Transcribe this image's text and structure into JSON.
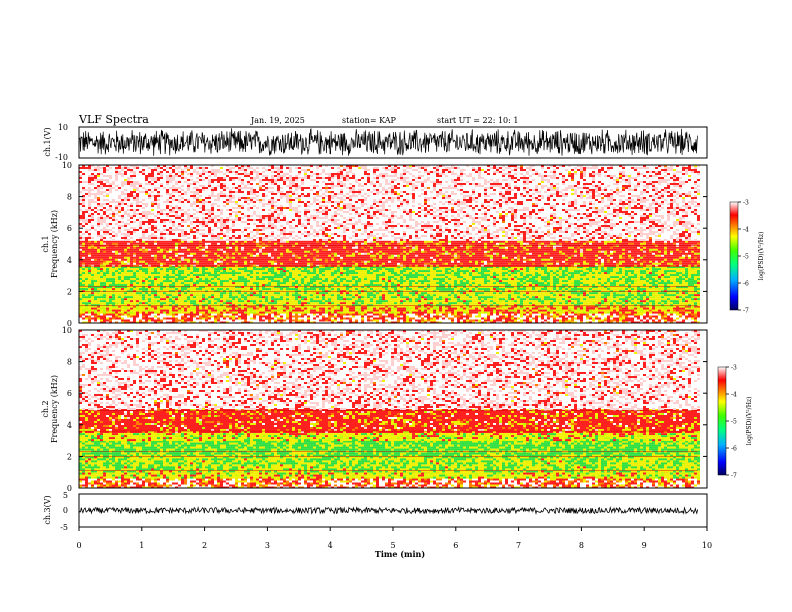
{
  "header": {
    "title": "VLF Spectra",
    "date": "Jan. 19, 2025",
    "station": "station= KAP",
    "start": "start  UT =   22: 10: 1"
  },
  "chart_data": [
    {
      "type": "line",
      "name": "ch1-waveform",
      "ylabel": "ch.1(V)",
      "ylim": [
        -10,
        10
      ],
      "yticks": [
        "10",
        "-10"
      ],
      "xlim": [
        0,
        10
      ],
      "description_values": {
        "amplitude_range": [
          -9.5,
          9.5
        ]
      }
    },
    {
      "type": "heatmap",
      "name": "ch1-spectrogram",
      "ylabel_line1": "ch.1",
      "ylabel_line2": "Frequency  (kHz)",
      "ylim": [
        0,
        10
      ],
      "yticks": [
        "0",
        "2",
        "4",
        "6",
        "8",
        "10"
      ],
      "xlim": [
        0,
        9.85
      ],
      "bands_khz": [
        {
          "from": 0.0,
          "to": 0.6,
          "level": "mixed"
        },
        {
          "from": 0.6,
          "to": 1.1,
          "level": -4.3
        },
        {
          "from": 1.1,
          "to": 2.2,
          "level": -4.9
        },
        {
          "from": 2.2,
          "to": 3.6,
          "level": -5.0
        },
        {
          "from": 3.6,
          "to": 5.2,
          "level": -3.8
        },
        {
          "from": 5.2,
          "to": 10.0,
          "level": -3.2
        }
      ],
      "colorbar": {
        "label": "log(PSD)(V²/Hz)",
        "ticks": [
          "-3",
          "-4",
          "-5",
          "-6",
          "-7"
        ],
        "range": [
          -7,
          -3
        ]
      }
    },
    {
      "type": "heatmap",
      "name": "ch2-spectrogram",
      "ylabel_line1": "ch.2",
      "ylabel_line2": "Frequency  (kHz)",
      "ylim": [
        0,
        10
      ],
      "yticks": [
        "0",
        "2",
        "4",
        "6",
        "8",
        "10"
      ],
      "xlim": [
        0,
        9.85
      ],
      "bands_khz": [
        {
          "from": 0.0,
          "to": 0.6,
          "level": "mixed"
        },
        {
          "from": 0.6,
          "to": 1.1,
          "level": -4.6
        },
        {
          "from": 1.1,
          "to": 2.0,
          "level": -5.0
        },
        {
          "from": 2.0,
          "to": 3.0,
          "level": -5.4
        },
        {
          "from": 3.0,
          "to": 3.6,
          "level": -4.6
        },
        {
          "from": 3.6,
          "to": 5.0,
          "level": -3.8
        },
        {
          "from": 5.0,
          "to": 10.0,
          "level": -3.2
        }
      ],
      "colorbar": {
        "label": "log(PSD)(V²/Hz)",
        "ticks": [
          "-3",
          "-4",
          "-5",
          "-6",
          "-7"
        ],
        "range": [
          -7,
          -3
        ]
      }
    },
    {
      "type": "line",
      "name": "ch3-waveform",
      "ylabel": "ch.3(V)",
      "ylim": [
        -5,
        5
      ],
      "yticks": [
        "5",
        "0",
        "-5"
      ],
      "xlim": [
        0,
        10
      ],
      "xlabel": "Time  (min)",
      "xticks": [
        "0",
        "1",
        "2",
        "3",
        "4",
        "5",
        "6",
        "7",
        "8",
        "9",
        "10"
      ],
      "description_values": {
        "amplitude_range": [
          -0.9,
          0.9
        ]
      }
    }
  ],
  "colors": {
    "red": "#ff2020",
    "yellow": "#f0f000",
    "green": "#30e040",
    "lightred": "#ffd0d0"
  }
}
